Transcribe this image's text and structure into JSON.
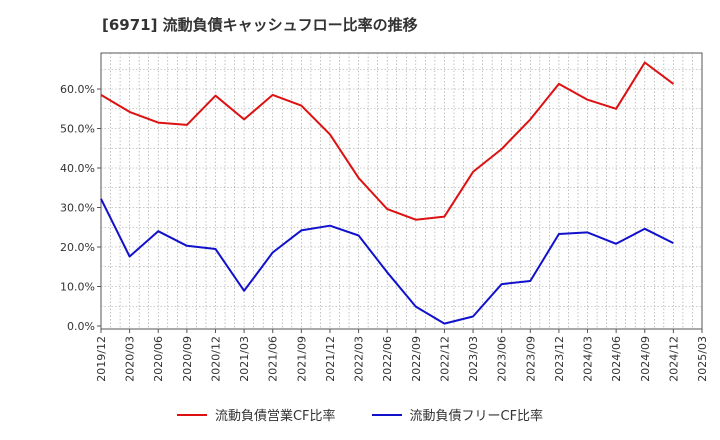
{
  "chart_data": {
    "type": "line",
    "title": "[6971]  流動負債キャッシュフロー比率の推移",
    "categories": [
      "2019/12",
      "2020/03",
      "2020/06",
      "2020/09",
      "2020/12",
      "2021/03",
      "2021/06",
      "2021/09",
      "2021/12",
      "2022/03",
      "2022/06",
      "2022/09",
      "2022/12",
      "2023/03",
      "2023/06",
      "2023/09",
      "2023/12",
      "2024/03",
      "2024/06",
      "2024/09",
      "2024/12",
      "2025/03"
    ],
    "y_ticks": [
      "0.0%",
      "10.0%",
      "20.0%",
      "30.0%",
      "40.0%",
      "50.0%",
      "60.0%"
    ],
    "ylim": [
      0,
      68
    ],
    "grid": true,
    "legend_position": "bottom",
    "series": [
      {
        "name": "流動負債営業CF比率",
        "color": "#dd1111",
        "values": [
          58.5,
          54.2,
          51.5,
          50.9,
          58.3,
          52.3,
          58.5,
          55.8,
          48.5,
          37.5,
          29.6,
          26.9,
          27.7,
          39.0,
          44.8,
          52.3,
          61.3,
          57.3,
          55.0,
          66.7,
          61.3,
          null
        ]
      },
      {
        "name": "流動負債フリーCF比率",
        "color": "#1111cc",
        "values": [
          32.2,
          17.6,
          24.0,
          20.3,
          19.5,
          8.9,
          18.6,
          24.2,
          25.4,
          22.9,
          13.6,
          4.9,
          0.6,
          2.4,
          10.6,
          11.4,
          23.3,
          23.7,
          20.8,
          24.6,
          21.0,
          null
        ]
      }
    ]
  }
}
